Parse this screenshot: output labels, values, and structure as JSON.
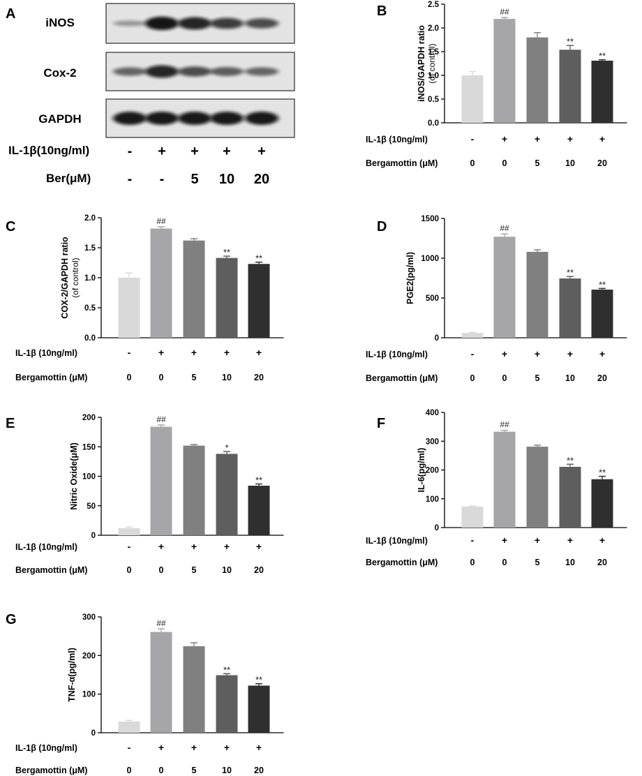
{
  "panel_A": {
    "letter": "A",
    "bands": [
      {
        "label": "iNOS",
        "intensity": [
          0.15,
          0.95,
          0.85,
          0.7,
          0.6
        ]
      },
      {
        "label": "Cox-2",
        "intensity": [
          0.45,
          0.85,
          0.6,
          0.5,
          0.45
        ]
      },
      {
        "label": "GAPDH",
        "intensity": [
          0.92,
          0.92,
          0.92,
          0.92,
          0.92
        ]
      }
    ],
    "row_labels": [
      "IL-1β(10ng/ml)",
      "Ber(μM)"
    ],
    "il1b_signs": [
      "-",
      "+",
      "+",
      "+",
      "+"
    ],
    "ber_values": [
      "-",
      "-",
      "5",
      "10",
      "20"
    ],
    "colors": {
      "band": "#111111",
      "background": "#e3e3e3"
    }
  },
  "treatment_labels": {
    "il1b_label": "IL-1β (10ng/ml)",
    "il1b_signs": [
      "-",
      "+",
      "+",
      "+",
      "+"
    ],
    "ber_label": "Bergamottin (μM)",
    "ber_values": [
      "0",
      "0",
      "5",
      "10",
      "20"
    ]
  },
  "bar_colors": [
    "#d9d9d9",
    "#a6a6a8",
    "#808080",
    "#5e5e5e",
    "#2f2f2f"
  ],
  "chart_data": [
    {
      "panel": "B",
      "type": "bar",
      "ylabel": "iNOS/GAPDH ratio",
      "ylabel2": "(of control)",
      "categories": [
        "0",
        "0",
        "5",
        "10",
        "20"
      ],
      "values": [
        1.0,
        2.19,
        1.8,
        1.54,
        1.31
      ],
      "errors": [
        0.08,
        0.03,
        0.1,
        0.09,
        0.02
      ],
      "annotations": [
        "",
        "##",
        "",
        "**",
        "**"
      ],
      "ylim": [
        0,
        2.5
      ],
      "yticks": [
        "0.0",
        "0.5",
        "1.0",
        "1.5",
        "2.0",
        "2.5"
      ]
    },
    {
      "panel": "C",
      "type": "bar",
      "ylabel": "COX-2/GAPDH ratio",
      "ylabel2": "(of control)",
      "categories": [
        "0",
        "0",
        "5",
        "10",
        "20"
      ],
      "values": [
        1.0,
        1.82,
        1.62,
        1.33,
        1.23
      ],
      "errors": [
        0.08,
        0.03,
        0.03,
        0.03,
        0.03
      ],
      "annotations": [
        "",
        "##",
        "",
        "**",
        "**"
      ],
      "ylim": [
        0,
        2.0
      ],
      "yticks": [
        "0.0",
        "0.5",
        "1.0",
        "1.5",
        "2.0"
      ]
    },
    {
      "panel": "D",
      "type": "bar",
      "ylabel": "PGE2(pg/ml)",
      "categories": [
        "0",
        "0",
        "5",
        "10",
        "20"
      ],
      "values": [
        60,
        1270,
        1080,
        745,
        605
      ],
      "errors": [
        8,
        35,
        25,
        25,
        15
      ],
      "annotations": [
        "",
        "##",
        "",
        "**",
        "**"
      ],
      "ylim": [
        0,
        1500
      ],
      "yticks": [
        "0",
        "500",
        "1000",
        "1500"
      ]
    },
    {
      "panel": "E",
      "type": "bar",
      "ylabel": "Nitric Oxide(μM)",
      "categories": [
        "0",
        "0",
        "5",
        "10",
        "20"
      ],
      "values": [
        12,
        184,
        152,
        138,
        84
      ],
      "errors": [
        2,
        3,
        2,
        4,
        3
      ],
      "annotations": [
        "",
        "##",
        "",
        "*",
        "**"
      ],
      "ylim": [
        0,
        200
      ],
      "yticks": [
        "0",
        "50",
        "100",
        "150",
        "200"
      ]
    },
    {
      "panel": "F",
      "type": "bar",
      "ylabel": "IL-6(pg/ml)",
      "categories": [
        "0",
        "0",
        "5",
        "10",
        "20"
      ],
      "values": [
        73,
        333,
        281,
        211,
        168
      ],
      "errors": [
        2,
        5,
        5,
        9,
        10
      ],
      "annotations": [
        "",
        "##",
        "",
        "**",
        "**"
      ],
      "ylim": [
        0,
        400
      ],
      "yticks": [
        "0",
        "100",
        "200",
        "300",
        "400"
      ]
    },
    {
      "panel": "G",
      "type": "bar",
      "ylabel": "TNF-α(pg/ml)",
      "categories": [
        "0",
        "0",
        "5",
        "10",
        "20"
      ],
      "values": [
        29,
        261,
        224,
        149,
        122
      ],
      "errors": [
        3,
        8,
        9,
        4,
        5
      ],
      "annotations": [
        "",
        "##",
        "",
        "**",
        "**"
      ],
      "ylim": [
        0,
        300
      ],
      "yticks": [
        "0",
        "100",
        "200",
        "300"
      ]
    }
  ]
}
